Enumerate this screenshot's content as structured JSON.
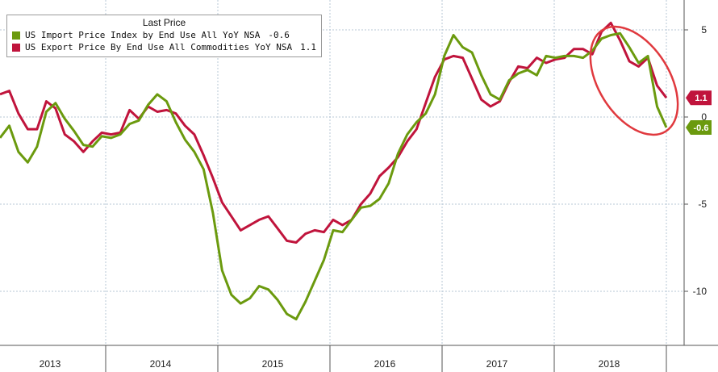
{
  "colors": {
    "import": "#6b9a0e",
    "export": "#c0143c",
    "grid": "#b7c7d6",
    "axis": "#555555",
    "highlight": "#e0393e"
  },
  "legend": {
    "title": "Last Price",
    "items": [
      {
        "label": "US Import Price Index by End Use All YoY NSA",
        "value": "-0.6"
      },
      {
        "label": "US Export Price By End Use All Commodities YoY NSA",
        "value": "1.1"
      }
    ]
  },
  "chart_data": {
    "type": "line",
    "x_labels": [
      "2013",
      "2014",
      "2015",
      "2016",
      "2017",
      "2018"
    ],
    "y_ticks": [
      5,
      0,
      -5,
      -10
    ],
    "ylim": [
      -13,
      6.5
    ],
    "grid": true,
    "legend_position": "top-left",
    "series": [
      {
        "name": "US Import Price Index by End Use All YoY NSA",
        "color": "#6b9a0e",
        "last_value": "-0.6",
        "values": [
          -1.2,
          -0.5,
          -2.0,
          -2.6,
          -1.7,
          0.3,
          0.8,
          -0.1,
          -0.8,
          -1.6,
          -1.7,
          -1.1,
          -1.2,
          -1.0,
          -0.4,
          -0.2,
          0.7,
          1.3,
          0.9,
          -0.3,
          -1.3,
          -2.0,
          -3.0,
          -5.5,
          -8.8,
          -10.2,
          -10.7,
          -10.4,
          -9.7,
          -9.9,
          -10.5,
          -11.3,
          -11.6,
          -10.6,
          -9.4,
          -8.2,
          -6.5,
          -6.6,
          -5.9,
          -5.2,
          -5.1,
          -4.7,
          -3.8,
          -2.1,
          -1.0,
          -0.3,
          0.2,
          1.3,
          3.5,
          4.7,
          4.0,
          3.7,
          2.4,
          1.3,
          1.0,
          2.1,
          2.5,
          2.7,
          2.4,
          3.5,
          3.4,
          3.5,
          3.5,
          3.4,
          3.8,
          4.5,
          4.7,
          4.8,
          4.0,
          3.1,
          3.5,
          0.6,
          -0.6
        ]
      },
      {
        "name": "US Export Price By End Use All Commodities YoY NSA",
        "color": "#c0143c",
        "last_value": "1.1",
        "values": [
          1.3,
          1.5,
          0.2,
          -0.7,
          -0.7,
          0.9,
          0.5,
          -1.0,
          -1.4,
          -2.0,
          -1.4,
          -0.9,
          -1.0,
          -0.9,
          0.4,
          -0.1,
          0.6,
          0.3,
          0.4,
          0.2,
          -0.5,
          -1.0,
          -2.2,
          -3.5,
          -4.9,
          -5.7,
          -6.5,
          -6.2,
          -5.9,
          -5.7,
          -6.4,
          -7.1,
          -7.2,
          -6.7,
          -6.5,
          -6.6,
          -5.9,
          -6.2,
          -5.9,
          -5.0,
          -4.4,
          -3.4,
          -2.9,
          -2.3,
          -1.4,
          -0.7,
          0.8,
          2.3,
          3.3,
          3.5,
          3.4,
          2.2,
          1.0,
          0.6,
          0.9,
          2.0,
          2.9,
          2.8,
          3.4,
          3.1,
          3.3,
          3.4,
          3.9,
          3.9,
          3.6,
          4.9,
          5.4,
          4.4,
          3.2,
          2.9,
          3.4,
          1.8,
          1.1
        ]
      }
    ],
    "annotation": "red ellipse highlighting 2018 decline"
  }
}
